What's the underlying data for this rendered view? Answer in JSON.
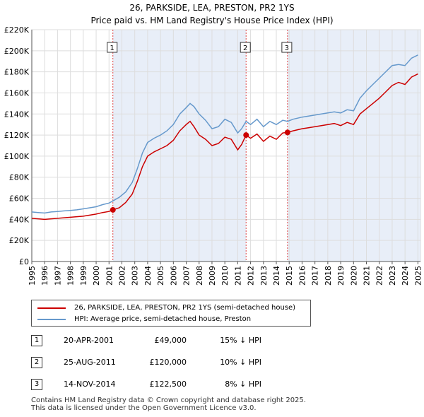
{
  "chart_data": {
    "type": "line",
    "title": "26, PARKSIDE, LEA, PRESTON, PR2 1YS",
    "subtitle": "Price paid vs. HM Land Registry's House Price Index (HPI)",
    "xlim": [
      1995,
      2025.2
    ],
    "ylim": [
      0,
      220000
    ],
    "y_ticks": [
      0,
      20000,
      40000,
      60000,
      80000,
      100000,
      120000,
      140000,
      160000,
      180000,
      200000,
      220000
    ],
    "y_tick_labels": [
      "£0",
      "£20K",
      "£40K",
      "£60K",
      "£80K",
      "£100K",
      "£120K",
      "£140K",
      "£160K",
      "£180K",
      "£200K",
      "£220K"
    ],
    "x_tick_labels": [
      "1995",
      "1996",
      "1997",
      "1998",
      "1999",
      "2000",
      "2001",
      "2002",
      "2003",
      "2004",
      "2005",
      "2006",
      "2007",
      "2008",
      "2009",
      "2010",
      "2011",
      "2012",
      "2013",
      "2014",
      "2015",
      "2016",
      "2017",
      "2018",
      "2019",
      "2020",
      "2021",
      "2022",
      "2023",
      "2024",
      "2025"
    ],
    "series": [
      {
        "name": "26, PARKSIDE, LEA, PRESTON, PR2 1YS (semi-detached house)",
        "color": "#cc0000",
        "x": [
          1995.0,
          1995.5,
          1996.0,
          1996.5,
          1997.0,
          1997.5,
          1998.0,
          1998.5,
          1999.0,
          1999.5,
          2000.0,
          2000.5,
          2001.0,
          2001.3,
          2001.8,
          2002.3,
          2002.8,
          2003.2,
          2003.6,
          2004.0,
          2004.5,
          2005.0,
          2005.5,
          2006.0,
          2006.5,
          2007.0,
          2007.3,
          2007.6,
          2008.0,
          2008.5,
          2009.0,
          2009.5,
          2010.0,
          2010.5,
          2011.0,
          2011.3,
          2011.65,
          2012.0,
          2012.5,
          2013.0,
          2013.5,
          2014.0,
          2014.5,
          2014.87,
          2015.3,
          2016.0,
          2016.5,
          2017.0,
          2017.5,
          2018.0,
          2018.5,
          2019.0,
          2019.5,
          2020.0,
          2020.5,
          2021.0,
          2021.5,
          2022.0,
          2022.5,
          2023.0,
          2023.5,
          2024.0,
          2024.5,
          2025.0
        ],
        "values": [
          41000,
          40500,
          40000,
          40500,
          41000,
          41500,
          42000,
          42500,
          43000,
          44000,
          45000,
          46500,
          47500,
          49000,
          51000,
          56000,
          64000,
          76000,
          90000,
          100000,
          104000,
          107000,
          110000,
          115000,
          124000,
          130000,
          133000,
          128000,
          120000,
          116000,
          110000,
          112000,
          118000,
          116000,
          106000,
          111000,
          120000,
          117000,
          121000,
          114000,
          119000,
          116000,
          122000,
          122500,
          124000,
          126000,
          127000,
          128000,
          129000,
          130000,
          131000,
          129000,
          132000,
          130000,
          140000,
          145000,
          150000,
          155000,
          161000,
          167000,
          170000,
          168000,
          175000,
          178000
        ]
      },
      {
        "name": "HPI: Average price, semi-detached house, Preston",
        "color": "#6699cc",
        "x": [
          1995.0,
          1995.5,
          1996.0,
          1996.5,
          1997.0,
          1997.5,
          1998.0,
          1998.5,
          1999.0,
          1999.5,
          2000.0,
          2000.5,
          2001.0,
          2001.3,
          2001.8,
          2002.3,
          2002.8,
          2003.2,
          2003.6,
          2004.0,
          2004.5,
          2005.0,
          2005.5,
          2006.0,
          2006.5,
          2007.0,
          2007.3,
          2007.6,
          2008.0,
          2008.5,
          2009.0,
          2009.5,
          2010.0,
          2010.5,
          2011.0,
          2011.3,
          2011.65,
          2012.0,
          2012.5,
          2013.0,
          2013.5,
          2014.0,
          2014.5,
          2014.87,
          2015.3,
          2016.0,
          2016.5,
          2017.0,
          2017.5,
          2018.0,
          2018.5,
          2019.0,
          2019.5,
          2020.0,
          2020.5,
          2021.0,
          2021.5,
          2022.0,
          2022.5,
          2023.0,
          2023.5,
          2024.0,
          2024.5,
          2025.0
        ],
        "values": [
          47000,
          46500,
          46000,
          47000,
          47500,
          48000,
          48500,
          49000,
          50000,
          51000,
          52000,
          54000,
          55500,
          57500,
          61000,
          66000,
          75000,
          88000,
          103000,
          113000,
          117000,
          120000,
          124000,
          130000,
          140000,
          146000,
          150000,
          147000,
          140000,
          134000,
          126000,
          128000,
          135000,
          132000,
          122000,
          126000,
          133000,
          130000,
          135000,
          128000,
          133000,
          130000,
          134000,
          133000,
          135000,
          137000,
          138000,
          139000,
          140000,
          141000,
          142000,
          141000,
          144000,
          143000,
          155000,
          162000,
          168000,
          174000,
          180000,
          186000,
          187000,
          186000,
          193000,
          196000
        ]
      }
    ],
    "markers": [
      {
        "label": "1",
        "x": 2001.3,
        "value": 49000
      },
      {
        "label": "2",
        "x": 2011.65,
        "value": 120000
      },
      {
        "label": "3",
        "x": 2014.87,
        "value": 122500
      }
    ]
  },
  "legend": {
    "red_label": "26, PARKSIDE, LEA, PRESTON, PR2 1YS (semi-detached house)",
    "blue_label": "HPI: Average price, semi-detached house, Preston"
  },
  "transactions": [
    {
      "num": "1",
      "date": "20-APR-2001",
      "price": "£49,000",
      "hpi": "15% ↓ HPI"
    },
    {
      "num": "2",
      "date": "25-AUG-2011",
      "price": "£120,000",
      "hpi": "10% ↓ HPI"
    },
    {
      "num": "3",
      "date": "14-NOV-2014",
      "price": "£122,500",
      "hpi": "8% ↓ HPI"
    }
  ],
  "footer": {
    "line1": "Contains HM Land Registry data © Crown copyright and database right 2025.",
    "line2": "This data is licensed under the Open Government Licence v3.0."
  }
}
